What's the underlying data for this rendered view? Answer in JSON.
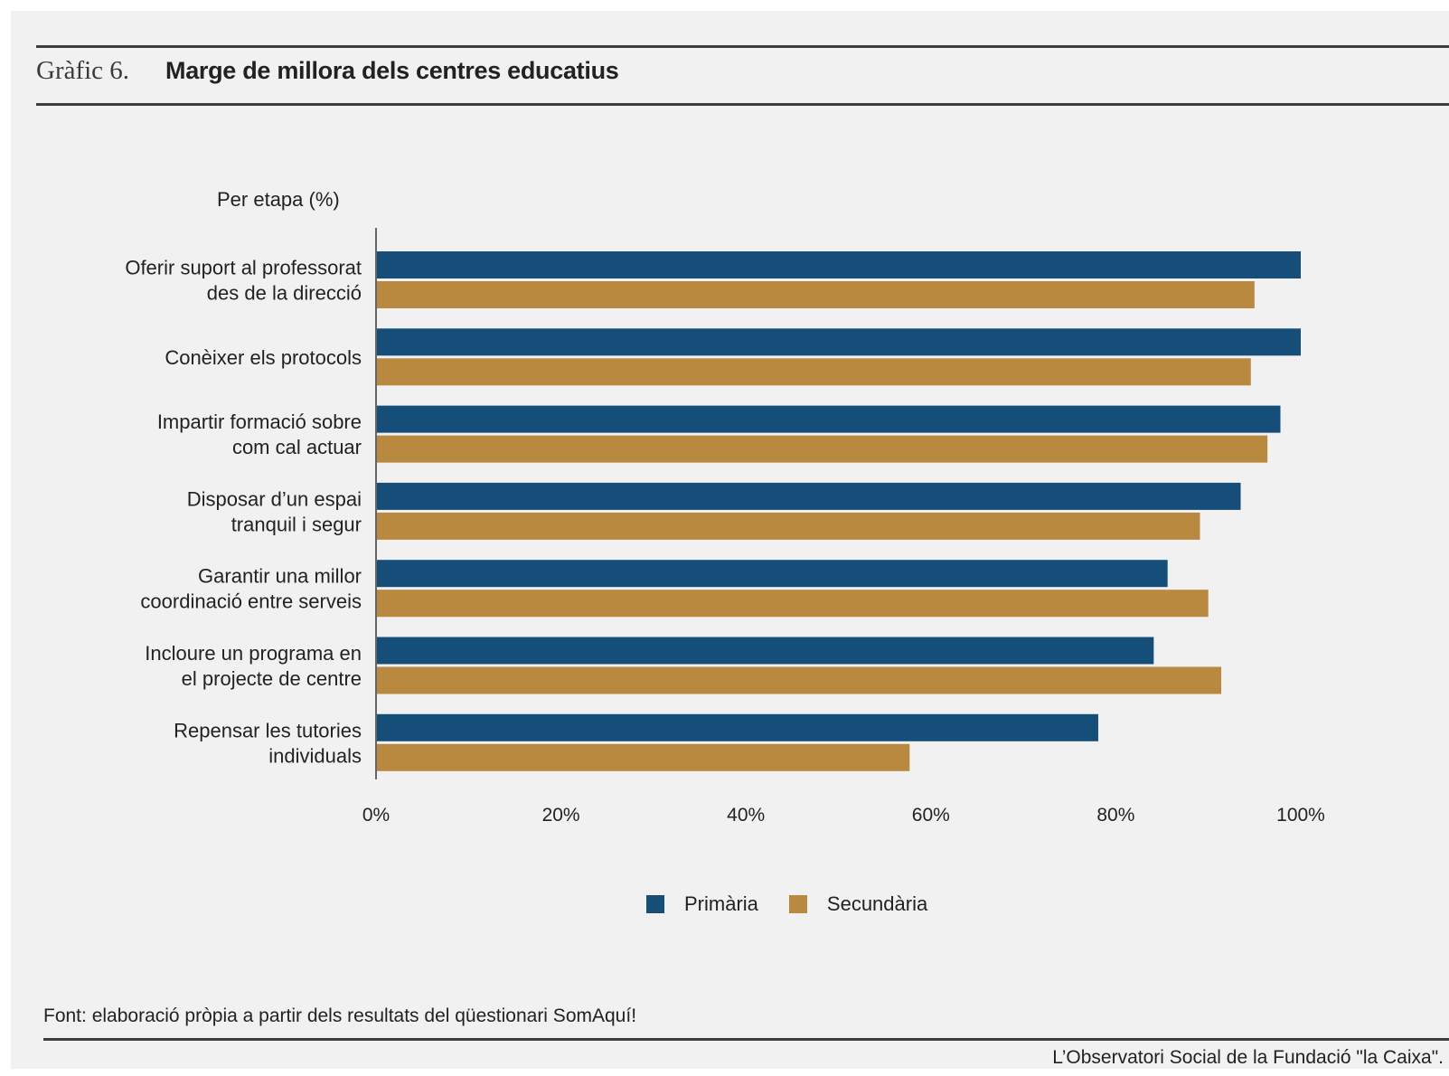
{
  "header": {
    "prefix": "Gràfic 6.",
    "title": "Marge de millora dels centres educatius"
  },
  "chart_data": {
    "type": "bar",
    "orientation": "horizontal",
    "subtitle": "Per etapa (%)",
    "categories": [
      [
        "Oferir suport al professorat",
        "des de la direcció"
      ],
      [
        "Conèixer els protocols"
      ],
      [
        "Impartir formació sobre",
        "com cal actuar"
      ],
      [
        "Disposar d’un espai",
        "tranquil i segur"
      ],
      [
        "Garantir una millor",
        "coordinació entre serveis"
      ],
      [
        "Incloure un programa en",
        "el projecte de centre"
      ],
      [
        "Repensar les tutories",
        "individuals"
      ]
    ],
    "series": [
      {
        "name": "Primària",
        "color": "#154e78",
        "values": [
          100,
          100,
          97.8,
          93.5,
          85.6,
          84.1,
          78.1
        ]
      },
      {
        "name": "Secundària",
        "color": "#b8893e",
        "values": [
          95,
          94.6,
          96.4,
          89.1,
          90,
          91.4,
          57.7
        ]
      }
    ],
    "xlim": [
      0,
      100
    ],
    "xticks": [
      "0%",
      "20%",
      "40%",
      "60%",
      "80%",
      "100%"
    ],
    "grid": false,
    "legend_position": "bottom"
  },
  "footer": {
    "source": "Font: elaboració pròpia a partir dels resultats del qüestionari SomAquí!",
    "credit": "L’Observatori Social de la Fundació \"la Caixa\"."
  }
}
